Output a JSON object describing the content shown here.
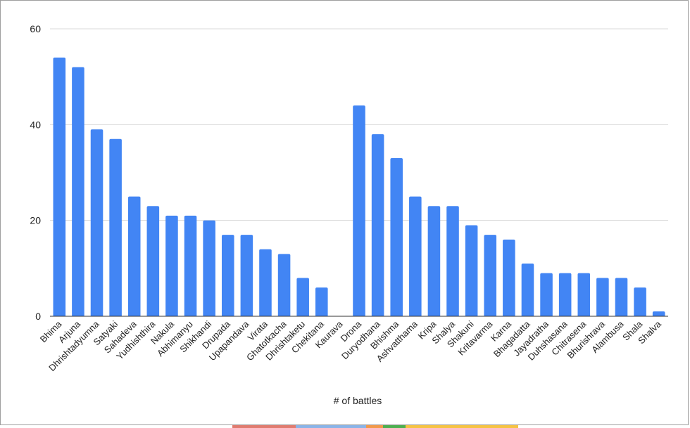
{
  "chart_data": {
    "type": "bar",
    "title": "",
    "xlabel": "# of battles",
    "ylabel": "",
    "ylim": [
      0,
      60
    ],
    "yticks": [
      0,
      20,
      40,
      60
    ],
    "grid": true,
    "bar_color": "#4285f4",
    "categories": [
      "Bhima",
      "Arjuna",
      "Dhrishtadyumna",
      "Satyaki",
      "Sahadeva",
      "Yudhishthira",
      "Nakula",
      "Abhimanyu",
      "Shikhandi",
      "Drupada",
      "Upapandava",
      "Virata",
      "Ghatotkacha",
      "Dhrishtaketu",
      "Chekitana",
      "Kaurava",
      "Drona",
      "Duryodhana",
      "Bhishma",
      "Ashvatthama",
      "Kripa",
      "Shalya",
      "Shakuni",
      "Kritavarma",
      "Karna",
      "Bhagadatta",
      "Jayadratha",
      "Duhshasana",
      "Chitrasena",
      "Bhurishrava",
      "Alambusa",
      "Shala",
      "Shalva"
    ],
    "values": [
      54,
      52,
      39,
      37,
      25,
      23,
      21,
      21,
      20,
      17,
      17,
      14,
      13,
      8,
      6,
      0,
      44,
      38,
      33,
      25,
      23,
      23,
      19,
      17,
      16,
      11,
      9,
      9,
      9,
      8,
      8,
      6,
      1
    ]
  },
  "colors": {
    "gridline": "#d9d9d9",
    "baseline": "#333333",
    "frame": "#9e9e9e"
  }
}
